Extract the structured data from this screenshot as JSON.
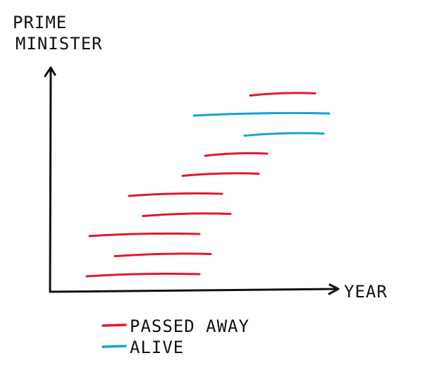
{
  "chart_data": {
    "type": "timeline",
    "ylabel": "PRIME MINISTER",
    "xlabel": "YEAR",
    "legend_position": "bottom-left",
    "colors": {
      "passed_away": "#e0192e",
      "alive": "#1aa1d6"
    },
    "series": [
      {
        "name": "PASSED AWAY",
        "key": "passed_away",
        "segments": [
          {
            "rank": 1,
            "start": 0.12,
            "end": 0.52
          },
          {
            "rank": 2,
            "start": 0.22,
            "end": 0.56
          },
          {
            "rank": 3,
            "start": 0.13,
            "end": 0.52
          },
          {
            "rank": 4,
            "start": 0.32,
            "end": 0.63
          },
          {
            "rank": 5,
            "start": 0.27,
            "end": 0.6
          },
          {
            "rank": 6,
            "start": 0.46,
            "end": 0.73
          },
          {
            "rank": 7,
            "start": 0.54,
            "end": 0.76
          },
          {
            "rank": 10,
            "start": 0.7,
            "end": 0.93
          }
        ]
      },
      {
        "name": "ALIVE",
        "key": "alive",
        "segments": [
          {
            "rank": 8,
            "start": 0.68,
            "end": 0.96
          },
          {
            "rank": 9,
            "start": 0.5,
            "end": 0.98
          }
        ]
      }
    ]
  }
}
